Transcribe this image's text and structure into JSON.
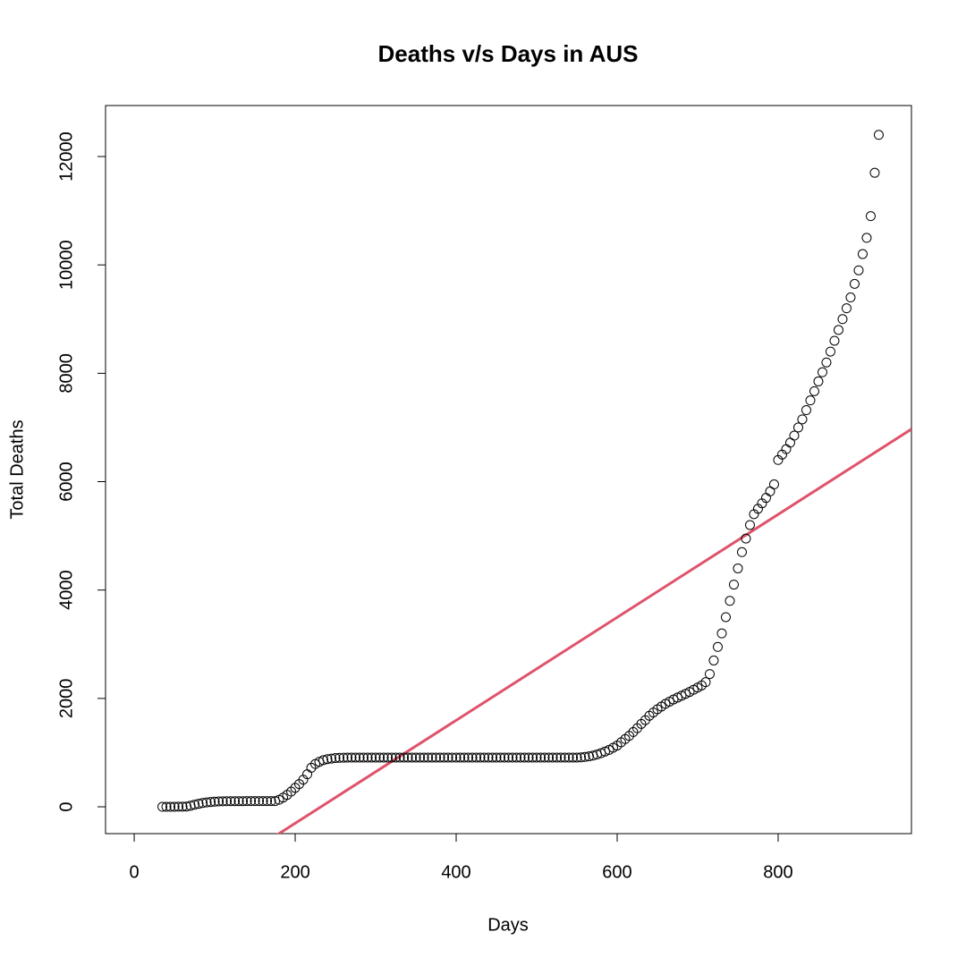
{
  "chart_data": {
    "type": "scatter",
    "title": "Deaths v/s Days in AUS",
    "x_label": "Days",
    "y_label": "Total Deaths",
    "xlim": [
      -35.6,
      965.6
    ],
    "ylim": [
      -495,
      12941
    ],
    "xticks": [
      0,
      200,
      400,
      600,
      800
    ],
    "yticks": [
      0,
      2000,
      4000,
      6000,
      8000,
      10000,
      12000
    ],
    "x": [
      35,
      40,
      45,
      50,
      55,
      60,
      65,
      70,
      75,
      80,
      85,
      90,
      95,
      100,
      105,
      110,
      115,
      120,
      125,
      130,
      135,
      140,
      145,
      150,
      155,
      160,
      165,
      170,
      175,
      180,
      185,
      190,
      195,
      200,
      205,
      210,
      215,
      220,
      225,
      230,
      235,
      240,
      245,
      250,
      255,
      260,
      265,
      270,
      275,
      280,
      285,
      290,
      295,
      300,
      305,
      310,
      315,
      320,
      325,
      330,
      335,
      340,
      345,
      350,
      355,
      360,
      365,
      370,
      375,
      380,
      385,
      390,
      395,
      400,
      405,
      410,
      415,
      420,
      425,
      430,
      435,
      440,
      445,
      450,
      455,
      460,
      465,
      470,
      475,
      480,
      485,
      490,
      495,
      500,
      505,
      510,
      515,
      520,
      525,
      530,
      535,
      540,
      545,
      550,
      555,
      560,
      565,
      570,
      575,
      580,
      585,
      590,
      595,
      600,
      605,
      610,
      615,
      620,
      625,
      630,
      635,
      640,
      645,
      650,
      655,
      660,
      665,
      670,
      675,
      680,
      685,
      690,
      695,
      700,
      705,
      710,
      715,
      720,
      725,
      730,
      735,
      740,
      745,
      750,
      755,
      760,
      765,
      770,
      775,
      780,
      785,
      790,
      795,
      800,
      805,
      810,
      815,
      820,
      825,
      830,
      835,
      840,
      845,
      850,
      855,
      860,
      865,
      870,
      875,
      880,
      885,
      890,
      895,
      900,
      905,
      910,
      915,
      920,
      925
    ],
    "series": [
      {
        "name": "Total Deaths",
        "color": "#000000",
        "values": [
          0,
          0,
          0,
          1,
          2,
          3,
          5,
          20,
          40,
          55,
          70,
          80,
          88,
          95,
          100,
          102,
          103,
          104,
          104,
          104,
          104,
          105,
          105,
          105,
          105,
          105,
          105,
          105,
          105,
          130,
          170,
          220,
          280,
          350,
          420,
          500,
          600,
          720,
          790,
          830,
          860,
          880,
          890,
          900,
          903,
          905,
          908,
          908,
          908,
          908,
          908,
          908,
          908,
          908,
          908,
          908,
          908,
          908,
          908,
          908,
          908,
          908,
          908,
          908,
          908,
          908,
          908,
          908,
          908,
          908,
          908,
          908,
          908,
          908,
          908,
          908,
          908,
          908,
          908,
          908,
          908,
          908,
          908,
          908,
          908,
          908,
          908,
          908,
          908,
          908,
          908,
          908,
          908,
          908,
          908,
          908,
          908,
          908,
          908,
          908,
          908,
          908,
          908,
          908,
          912,
          920,
          930,
          945,
          965,
          990,
          1020,
          1050,
          1090,
          1130,
          1190,
          1250,
          1310,
          1380,
          1450,
          1530,
          1600,
          1680,
          1740,
          1800,
          1850,
          1900,
          1940,
          1980,
          2015,
          2050,
          2085,
          2120,
          2160,
          2200,
          2240,
          2300,
          2450,
          2700,
          2950,
          3200,
          3500,
          3800,
          4100,
          4400,
          4700,
          4950,
          5200,
          5400,
          5500,
          5600,
          5700,
          5820,
          5950,
          6400,
          6500,
          6600,
          6720,
          6850,
          7000,
          7150,
          7320,
          7500,
          7670,
          7850,
          8020,
          8200,
          8400,
          8600,
          8800,
          9000,
          9200,
          9400,
          9650,
          9900,
          10200,
          10500,
          10900,
          11700,
          12400
        ]
      }
    ],
    "fit": {
      "intercept": -2204,
      "slope": 9.5,
      "color": "#df536b"
    }
  }
}
